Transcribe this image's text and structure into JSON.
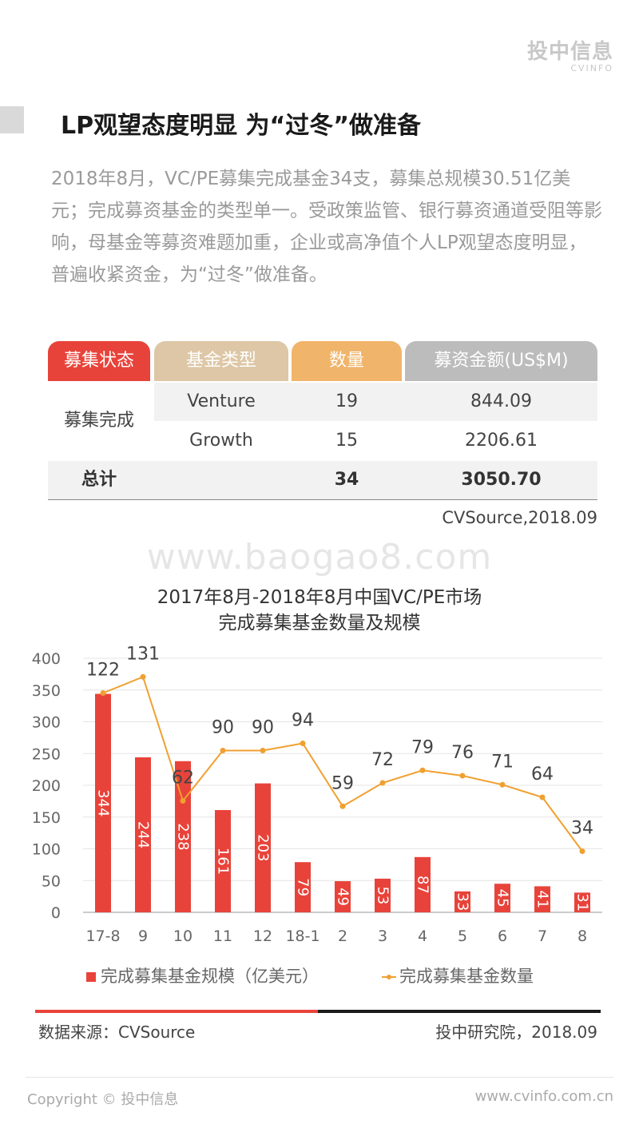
{
  "logo": {
    "main": "投中信息",
    "sub": "CVINFO"
  },
  "title": "LP观望态度明显 为“过冬”做准备",
  "intro": "2018年8月，VC/PE募集完成基金34支，募集总规模30.51亿美元；完成募资基金的类型单一。受政策监管、银行募资通道受阻等影响，母基金等募资难题加重，企业或高净值个人LP观望态度明显，普遍收紧资金，为“过冬”做准备。",
  "table": {
    "headers": [
      "募集状态",
      "基金类型",
      "数量",
      "募资金额(US$M)"
    ],
    "status": "募集完成",
    "rows": [
      {
        "type": "Venture",
        "count": "19",
        "amount": "844.09"
      },
      {
        "type": "Growth",
        "count": "15",
        "amount": "2206.61"
      }
    ],
    "total": {
      "label": "总计",
      "count": "34",
      "amount": "3050.70"
    },
    "source": "CVSource,2018.09"
  },
  "watermark": "www.baogao8.com",
  "chart_title": [
    "2017年8月-2018年8月中国VC/PE市场",
    "完成募集基金数量及规模"
  ],
  "chart_data": {
    "type": "bar",
    "categories": [
      "17-8",
      "9",
      "10",
      "11",
      "12",
      "18-1",
      "2",
      "3",
      "4",
      "5",
      "6",
      "7",
      "8"
    ],
    "series": [
      {
        "name": "完成募集基金规模（亿美元）",
        "type": "bar",
        "values": [
          344,
          244,
          238,
          161,
          203,
          79,
          49,
          53,
          87,
          33,
          45,
          41,
          31
        ],
        "color": "#e8433a"
      },
      {
        "name": "完成募集基金数量",
        "type": "line",
        "values": [
          122,
          131,
          62,
          90,
          90,
          94,
          59,
          72,
          79,
          76,
          71,
          64,
          34
        ],
        "color": "#f0a030"
      }
    ],
    "ylim": [
      0,
      400
    ],
    "yticks": [
      0,
      50,
      100,
      150,
      200,
      250,
      300,
      350,
      400
    ],
    "grid": true,
    "legend_position": "bottom"
  },
  "footer": {
    "source": "数据来源：CVSource",
    "org": "投中研究院，2018.09"
  },
  "copyright": "Copyright © 投中信息",
  "site": "www.cvinfo.com.cn"
}
